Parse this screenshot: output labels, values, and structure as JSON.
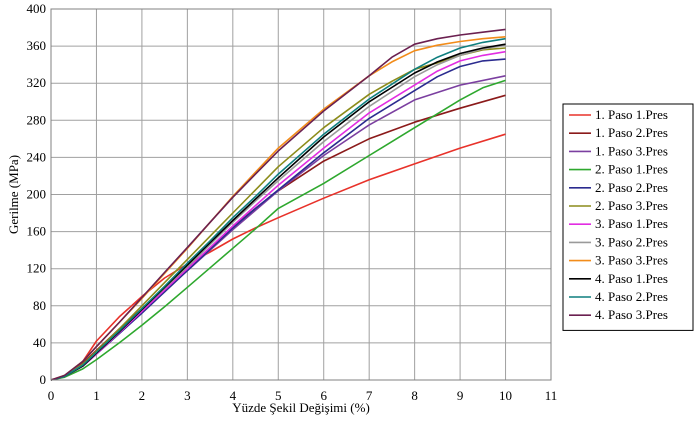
{
  "chart_data": {
    "type": "line",
    "xlabel": "Yüzde Şekil Değişimi (%)",
    "ylabel": "Gerilme (MPa)",
    "xlim": [
      0,
      11
    ],
    "ylim": [
      0,
      400
    ],
    "xticks": [
      0,
      1,
      2,
      3,
      4,
      5,
      6,
      7,
      8,
      9,
      10,
      11
    ],
    "yticks": [
      0,
      40,
      80,
      120,
      160,
      200,
      240,
      280,
      320,
      360,
      400
    ],
    "grid": true,
    "legend_position": "right",
    "series": [
      {
        "name": "1. Paso 1.Pres",
        "color": "#e8322a",
        "points": [
          [
            0,
            0
          ],
          [
            0.3,
            4
          ],
          [
            0.7,
            20
          ],
          [
            1,
            42
          ],
          [
            1.5,
            68
          ],
          [
            2,
            90
          ],
          [
            2.5,
            110
          ],
          [
            3,
            125
          ],
          [
            3.5,
            138
          ],
          [
            4,
            152
          ],
          [
            4.5,
            164
          ],
          [
            5,
            175
          ],
          [
            6,
            196
          ],
          [
            7,
            216
          ],
          [
            8,
            233
          ],
          [
            9,
            250
          ],
          [
            10,
            265
          ]
        ]
      },
      {
        "name": "1. Paso 2.Pres",
        "color": "#8b1a1a",
        "points": [
          [
            0,
            0
          ],
          [
            0.3,
            4
          ],
          [
            0.7,
            18
          ],
          [
            1,
            32
          ],
          [
            1.5,
            55
          ],
          [
            2,
            77
          ],
          [
            2.5,
            98
          ],
          [
            3,
            120
          ],
          [
            3.5,
            142
          ],
          [
            4,
            165
          ],
          [
            4.5,
            185
          ],
          [
            5,
            204
          ],
          [
            5.5,
            220
          ],
          [
            6,
            236
          ],
          [
            7,
            260
          ],
          [
            8,
            278
          ],
          [
            9,
            293
          ],
          [
            10,
            307
          ]
        ]
      },
      {
        "name": "1. Paso 3.Pres",
        "color": "#7b3fa0",
        "points": [
          [
            0,
            0
          ],
          [
            0.3,
            4
          ],
          [
            0.7,
            17
          ],
          [
            1,
            30
          ],
          [
            1.5,
            53
          ],
          [
            2,
            75
          ],
          [
            2.5,
            97
          ],
          [
            3,
            118
          ],
          [
            3.5,
            140
          ],
          [
            4,
            162
          ],
          [
            4.5,
            183
          ],
          [
            5,
            204
          ],
          [
            6,
            242
          ],
          [
            7,
            275
          ],
          [
            8,
            302
          ],
          [
            9,
            318
          ],
          [
            10,
            328
          ]
        ]
      },
      {
        "name": "2. Paso 1.Pres",
        "color": "#2ea82e",
        "points": [
          [
            0,
            0
          ],
          [
            0.3,
            3
          ],
          [
            0.7,
            12
          ],
          [
            1,
            22
          ],
          [
            1.5,
            40
          ],
          [
            2,
            59
          ],
          [
            2.5,
            79
          ],
          [
            3,
            100
          ],
          [
            3.5,
            121
          ],
          [
            4,
            142
          ],
          [
            4.5,
            163
          ],
          [
            5,
            185
          ],
          [
            6,
            212
          ],
          [
            7,
            242
          ],
          [
            8,
            272
          ],
          [
            8.5,
            287
          ],
          [
            9,
            302
          ],
          [
            9.5,
            315
          ],
          [
            10,
            323
          ]
        ]
      },
      {
        "name": "2. Paso 2.Pres",
        "color": "#2b2b8f",
        "points": [
          [
            0,
            0
          ],
          [
            0.3,
            4
          ],
          [
            0.7,
            15
          ],
          [
            1,
            28
          ],
          [
            1.5,
            50
          ],
          [
            2,
            72
          ],
          [
            2.5,
            95
          ],
          [
            3,
            118
          ],
          [
            3.5,
            141
          ],
          [
            4,
            164
          ],
          [
            4.5,
            185
          ],
          [
            5,
            205
          ],
          [
            6,
            245
          ],
          [
            7,
            282
          ],
          [
            8,
            312
          ],
          [
            8.5,
            327
          ],
          [
            9,
            338
          ],
          [
            9.5,
            344
          ],
          [
            10,
            346
          ]
        ]
      },
      {
        "name": "2. Paso 3.Pres",
        "color": "#8c8c1a",
        "points": [
          [
            0,
            0
          ],
          [
            0.3,
            4
          ],
          [
            0.7,
            17
          ],
          [
            1,
            31
          ],
          [
            1.5,
            55
          ],
          [
            2,
            80
          ],
          [
            2.5,
            105
          ],
          [
            3,
            130
          ],
          [
            3.5,
            155
          ],
          [
            4,
            180
          ],
          [
            4.5,
            205
          ],
          [
            5,
            230
          ],
          [
            6,
            272
          ],
          [
            7,
            308
          ],
          [
            7.5,
            322
          ],
          [
            8,
            335
          ],
          [
            8.5,
            342
          ],
          [
            9,
            350
          ],
          [
            9.5,
            356
          ],
          [
            10,
            358
          ]
        ]
      },
      {
        "name": "3. Paso 1.Pres",
        "color": "#e22de2",
        "points": [
          [
            0,
            0
          ],
          [
            0.3,
            4
          ],
          [
            0.7,
            15
          ],
          [
            1,
            28
          ],
          [
            1.5,
            51
          ],
          [
            2,
            74
          ],
          [
            2.5,
            97
          ],
          [
            3,
            120
          ],
          [
            3.5,
            143
          ],
          [
            4,
            166
          ],
          [
            4.5,
            188
          ],
          [
            5,
            210
          ],
          [
            6,
            250
          ],
          [
            7,
            288
          ],
          [
            8,
            318
          ],
          [
            8.5,
            333
          ],
          [
            9,
            344
          ],
          [
            9.5,
            350
          ],
          [
            10,
            354
          ]
        ]
      },
      {
        "name": "3. Paso 2.Pres",
        "color": "#9a9a9a",
        "points": [
          [
            0,
            0
          ],
          [
            0.3,
            4
          ],
          [
            0.7,
            16
          ],
          [
            1,
            29
          ],
          [
            1.5,
            52
          ],
          [
            2,
            76
          ],
          [
            2.5,
            99
          ],
          [
            3,
            122
          ],
          [
            3.5,
            146
          ],
          [
            4,
            170
          ],
          [
            4.5,
            193
          ],
          [
            5,
            215
          ],
          [
            6,
            257
          ],
          [
            7,
            295
          ],
          [
            8,
            327
          ],
          [
            8.5,
            340
          ],
          [
            9,
            350
          ],
          [
            9.5,
            357
          ],
          [
            10,
            361
          ]
        ]
      },
      {
        "name": "3. Paso 3.Pres",
        "color": "#f28c1a",
        "points": [
          [
            0,
            0
          ],
          [
            0.3,
            5
          ],
          [
            0.7,
            20
          ],
          [
            1,
            36
          ],
          [
            1.5,
            62
          ],
          [
            2,
            88
          ],
          [
            2.5,
            115
          ],
          [
            3,
            142
          ],
          [
            3.5,
            170
          ],
          [
            4,
            198
          ],
          [
            4.5,
            224
          ],
          [
            5,
            250
          ],
          [
            6,
            292
          ],
          [
            7,
            328
          ],
          [
            7.5,
            343
          ],
          [
            8,
            355
          ],
          [
            8.5,
            361
          ],
          [
            9,
            365
          ],
          [
            9.5,
            368
          ],
          [
            10,
            370
          ]
        ]
      },
      {
        "name": "4. Paso 1.Pres",
        "color": "#000000",
        "points": [
          [
            0,
            0
          ],
          [
            0.3,
            4
          ],
          [
            0.7,
            15
          ],
          [
            1,
            29
          ],
          [
            1.5,
            52
          ],
          [
            2,
            76
          ],
          [
            2.5,
            100
          ],
          [
            3,
            124
          ],
          [
            3.5,
            148
          ],
          [
            4,
            172
          ],
          [
            4.5,
            195
          ],
          [
            5,
            218
          ],
          [
            6,
            262
          ],
          [
            7,
            300
          ],
          [
            8,
            331
          ],
          [
            8.5,
            343
          ],
          [
            9,
            352
          ],
          [
            9.5,
            358
          ],
          [
            10,
            362
          ]
        ]
      },
      {
        "name": "4. Paso 2.Pres",
        "color": "#0f7f7f",
        "points": [
          [
            0,
            0
          ],
          [
            0.3,
            4
          ],
          [
            0.7,
            16
          ],
          [
            1,
            30
          ],
          [
            1.5,
            53
          ],
          [
            2,
            77
          ],
          [
            2.5,
            101
          ],
          [
            3,
            126
          ],
          [
            3.5,
            150
          ],
          [
            4,
            175
          ],
          [
            4.5,
            198
          ],
          [
            5,
            222
          ],
          [
            6,
            265
          ],
          [
            7,
            303
          ],
          [
            8,
            335
          ],
          [
            8.5,
            348
          ],
          [
            9,
            358
          ],
          [
            9.5,
            364
          ],
          [
            10,
            368
          ]
        ]
      },
      {
        "name": "4. Paso 3.Pres",
        "color": "#6b2050",
        "points": [
          [
            0,
            0
          ],
          [
            0.3,
            5
          ],
          [
            0.7,
            20
          ],
          [
            1,
            36
          ],
          [
            1.5,
            62
          ],
          [
            2,
            89
          ],
          [
            2.5,
            116
          ],
          [
            3,
            143
          ],
          [
            3.5,
            170
          ],
          [
            4,
            197
          ],
          [
            4.5,
            222
          ],
          [
            5,
            247
          ],
          [
            6,
            290
          ],
          [
            7,
            328
          ],
          [
            7.5,
            348
          ],
          [
            8,
            362
          ],
          [
            8.5,
            368
          ],
          [
            9,
            372
          ],
          [
            9.5,
            375
          ],
          [
            10,
            378
          ]
        ]
      }
    ]
  }
}
